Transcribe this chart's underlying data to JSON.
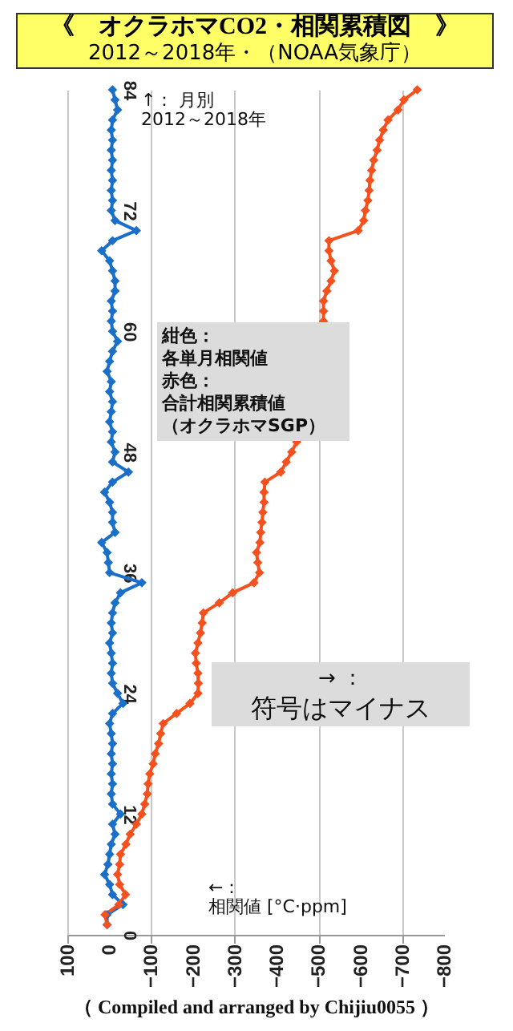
{
  "chart_data": {
    "type": "line",
    "title": "《　オクラホマCO2・相関累積図　》",
    "subtitle": "2012～2018年・（NOAA気象庁）",
    "orientation": "horizontal",
    "x": [
      1,
      2,
      3,
      4,
      5,
      6,
      7,
      8,
      9,
      10,
      11,
      12,
      13,
      14,
      15,
      16,
      17,
      18,
      19,
      20,
      21,
      22,
      23,
      24,
      25,
      26,
      27,
      28,
      29,
      30,
      31,
      32,
      33,
      34,
      35,
      36,
      37,
      38,
      39,
      40,
      41,
      42,
      43,
      44,
      45,
      46,
      47,
      48,
      49,
      50,
      51,
      52,
      53,
      54,
      55,
      56,
      57,
      58,
      59,
      60,
      61,
      62,
      63,
      64,
      65,
      66,
      67,
      68,
      69,
      70,
      71,
      72,
      73,
      74,
      75,
      76,
      77,
      78,
      79,
      80,
      81,
      82,
      83,
      84
    ],
    "series": [
      {
        "color": "#1a6fc8",
        "values": [
          5,
          5,
          -33,
          -8,
          -1,
          11,
          3,
          -1,
          -5,
          -14,
          -8,
          -27,
          -8,
          -5,
          -8,
          -5,
          -8,
          -5,
          -8,
          -5,
          -1,
          -8,
          -33,
          -20,
          -8,
          -5,
          -8,
          -5,
          -1,
          -8,
          -5,
          -8,
          -14,
          -27,
          -78,
          -1,
          2,
          5,
          18,
          -14,
          -8,
          -8,
          -1,
          11,
          -8,
          -46,
          -8,
          -14,
          -5,
          -8,
          -1,
          -5,
          -8,
          -1,
          -5,
          5,
          -1,
          -8,
          -20,
          -8,
          -5,
          -8,
          -5,
          -14,
          -14,
          -8,
          -1,
          18,
          -8,
          -65,
          -14,
          -5,
          -8,
          -5,
          -8,
          -5,
          -8,
          -5,
          -8,
          -5,
          -8,
          -20,
          -14,
          -8
        ]
      },
      {
        "color": "#f4511e",
        "values": [
          5,
          10,
          -23,
          -39,
          -25,
          -20,
          -25,
          -27,
          -40,
          -50,
          -65,
          -78,
          -85,
          -91,
          -93,
          -97,
          -105,
          -110,
          -118,
          -123,
          -129,
          -161,
          -193,
          -212,
          -213,
          -212,
          -208,
          -206,
          -212,
          -218,
          -222,
          -225,
          -263,
          -295,
          -346,
          -359,
          -355,
          -352,
          -360,
          -362,
          -365,
          -367,
          -370,
          -370,
          -372,
          -410,
          -423,
          -436,
          -448,
          null,
          null,
          null,
          null,
          null,
          null,
          null,
          null,
          null,
          null,
          null,
          -512,
          -512,
          -512,
          -520,
          -530,
          -538,
          -530,
          -525,
          -525,
          -595,
          -608,
          -612,
          -618,
          -621,
          -623,
          -627,
          -632,
          -640,
          -646,
          -655,
          -666,
          -690,
          -704,
          -736
        ]
      }
    ],
    "xlim": [
      100,
      -800
    ],
    "xticks": [
      100,
      0,
      -100,
      -200,
      -300,
      -400,
      -500,
      -600,
      -700,
      -800
    ],
    "ylim": [
      0,
      84
    ],
    "yticks": [
      0,
      12,
      24,
      36,
      48,
      60,
      72,
      84
    ],
    "grid": "x",
    "marker": "diamond",
    "annotations": [
      "↑：  月別",
      "2012～2018年",
      "紺色：",
      "各単月相関値",
      "赤色：",
      "合計相関累積値",
      "（オクラホマSGP）",
      "→  ：",
      "符号はマイナス",
      "←：",
      "相関値  [°C·ppm]",
      "（ Compiled and arranged by Chijiu0055 ）"
    ]
  }
}
